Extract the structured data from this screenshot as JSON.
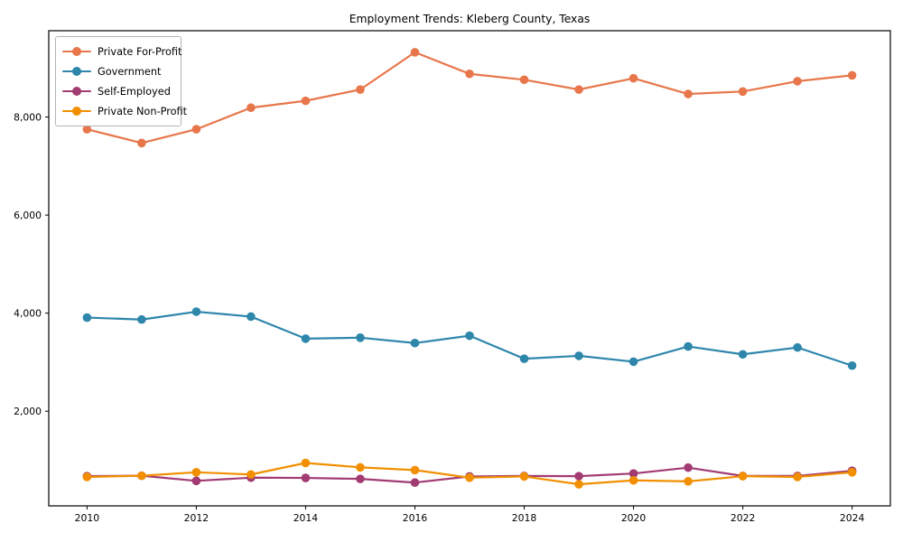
{
  "figure": {
    "background": "#ffffff",
    "axis_color": "#000000"
  },
  "chart_data": {
    "type": "line",
    "title": "Employment Trends: Kleberg County, Texas",
    "xlabel": "",
    "ylabel": "",
    "x": [
      2010,
      2011,
      2012,
      2013,
      2014,
      2015,
      2016,
      2017,
      2018,
      2019,
      2020,
      2021,
      2022,
      2023,
      2024
    ],
    "series": [
      {
        "name": "Private For-Profit",
        "color": "#E8764B",
        "values": [
          7750,
          7470,
          7750,
          8190,
          8330,
          8560,
          9320,
          8880,
          8760,
          8560,
          8790,
          8470,
          8520,
          8730,
          8850
        ]
      },
      {
        "name": "Government",
        "color": "#2E86AB",
        "values": [
          3910,
          3870,
          4030,
          3930,
          3480,
          3500,
          3390,
          3540,
          3070,
          3130,
          3010,
          3320,
          3160,
          3300,
          2930
        ]
      },
      {
        "name": "Self-Employed",
        "color": "#A23B72",
        "values": [
          675,
          685,
          580,
          645,
          640,
          620,
          545,
          670,
          680,
          675,
          730,
          850,
          680,
          680,
          785
        ]
      },
      {
        "name": "Private Non-Profit",
        "color": "#F18F01",
        "values": [
          660,
          685,
          755,
          710,
          945,
          855,
          800,
          645,
          670,
          510,
          590,
          570,
          675,
          660,
          755
        ]
      }
    ],
    "xlim": [
      2009.3,
      2024.7
    ],
    "ylim": [
      70,
      9760
    ],
    "xticks": [
      2010,
      2012,
      2014,
      2016,
      2018,
      2020,
      2022,
      2024
    ],
    "xtick_labels": [
      "2010",
      "2012",
      "2014",
      "2016",
      "2018",
      "2020",
      "2022",
      "2024"
    ],
    "yticks": [
      2000,
      4000,
      6000,
      8000
    ],
    "ytick_labels": [
      "2,000",
      "4,000",
      "6,000",
      "8,000"
    ],
    "grid": false,
    "legend_position": "upper-left"
  }
}
